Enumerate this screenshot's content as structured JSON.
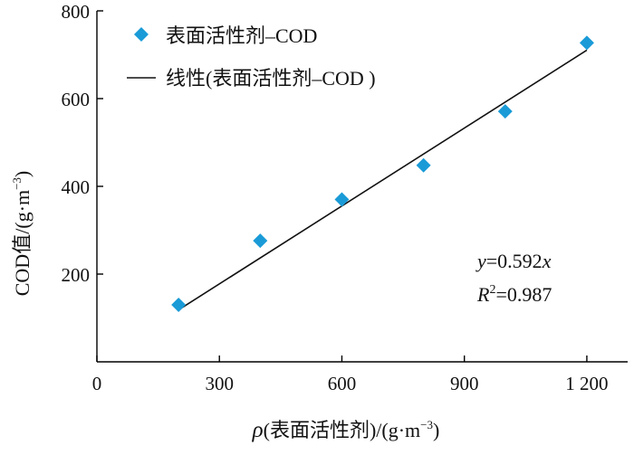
{
  "chart_data": {
    "type": "scatter",
    "xlabel_symbol": "ρ",
    "xlabel_text": "(表面活性剂)/(g·m",
    "xlabel_sup": "−3",
    "xlabel_end": ")",
    "ylabel_text": "COD值/(g·m",
    "ylabel_sup": "−3",
    "ylabel_end": ")",
    "xlim": [
      0,
      1300
    ],
    "ylim": [
      0,
      800
    ],
    "xticks": [
      0,
      300,
      600,
      900,
      1200
    ],
    "xtick_labels": [
      "0",
      "300",
      "600",
      "900",
      "1 200"
    ],
    "yticks": [
      200,
      400,
      600,
      800
    ],
    "ytick_labels": [
      "200",
      "400",
      "600",
      "800"
    ],
    "series": [
      {
        "name": "表面活性剂–COD",
        "color": "#1a9bd7",
        "marker": "diamond",
        "x": [
          200,
          400,
          600,
          800,
          1000,
          1200
        ],
        "y": [
          130,
          276,
          370,
          448,
          571,
          727
        ]
      }
    ],
    "fit_line": {
      "name": "线性(表面活性剂–COD )",
      "color": "#111111",
      "slope": 0.592,
      "x_range": [
        200,
        1200
      ]
    },
    "equation": {
      "y_var": "y",
      "equals_coef": "=0.592",
      "x_var": "x",
      "r_var": "R",
      "r_sup": "2",
      "r_value": "=0.987"
    },
    "legend_position": "top-left",
    "grid": false
  }
}
